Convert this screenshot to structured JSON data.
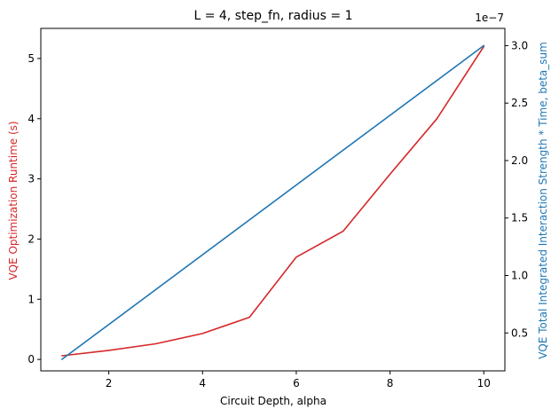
{
  "chart_data": {
    "type": "line",
    "title": "L = 4, step_fn, radius = 1",
    "xlabel": "Circuit Depth, alpha",
    "y_left_label": "VQE Optimization Runtime (s)",
    "y_right_label": "VQE Total Integrated Interaction Strength * Time, beta_sum",
    "right_axis_offset_text": "1e−7",
    "xlim": [
      0.55,
      10.45
    ],
    "ylim_left": [
      -0.19,
      5.5
    ],
    "ylim_right": [
      0.17,
      3.15
    ],
    "x_ticks": [
      2,
      4,
      6,
      8,
      10
    ],
    "x_tick_labels": [
      "2",
      "4",
      "6",
      "8",
      "10"
    ],
    "left_ticks": [
      0,
      1,
      2,
      3,
      4,
      5
    ],
    "left_tick_labels": [
      "0",
      "1",
      "2",
      "3",
      "4",
      "5"
    ],
    "right_ticks": [
      0.5,
      1.0,
      1.5,
      2.0,
      2.5,
      3.0
    ],
    "right_tick_labels": [
      "0.5",
      "1.0",
      "1.5",
      "2.0",
      "2.5",
      "3.0"
    ],
    "grid": false,
    "series": [
      {
        "axis": "left",
        "color": "#d62728",
        "x": [
          1,
          2,
          3,
          4,
          5,
          6,
          7,
          8,
          9,
          10
        ],
        "values": [
          0.06,
          0.15,
          0.26,
          0.43,
          0.7,
          1.7,
          2.13,
          3.08,
          4.0,
          5.2
        ]
      },
      {
        "axis": "right",
        "color": "#1f77b4",
        "x": [
          1,
          10
        ],
        "values": [
          0.27,
          3.0
        ]
      }
    ]
  }
}
